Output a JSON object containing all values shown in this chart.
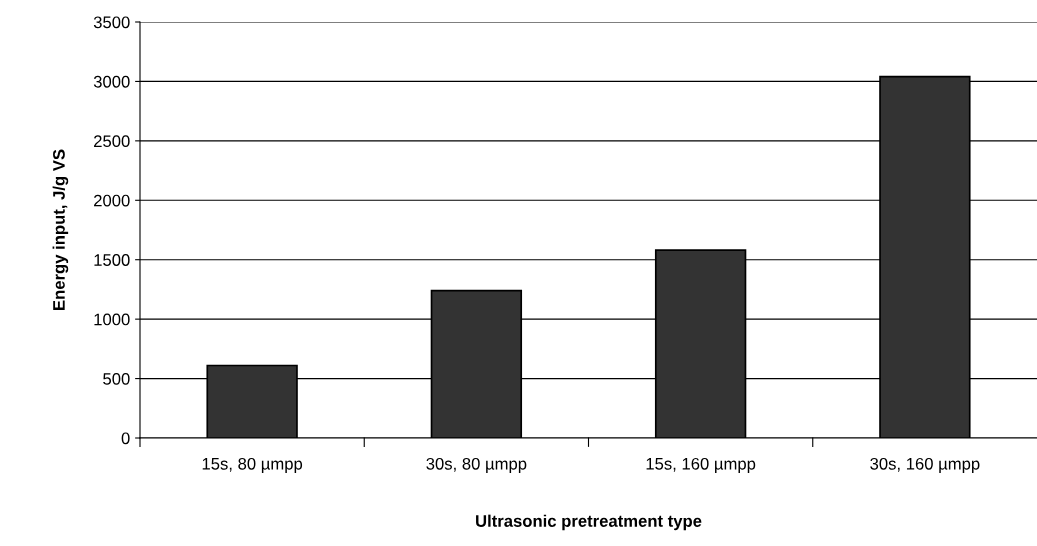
{
  "chart_data": {
    "type": "bar",
    "xlabel": "Ultrasonic pretreatment type",
    "ylabel": "Energy input, J/g VS",
    "categories": [
      "15s, 80 µmpp",
      "30s, 80 µmpp",
      "15s, 160 µmpp",
      "30s, 160 µmpp"
    ],
    "values": [
      610,
      1240,
      1580,
      3040
    ],
    "color": "#333333",
    "ylim": [
      0,
      3500
    ],
    "yticks": [
      0,
      500,
      1000,
      1500,
      2000,
      2500,
      3000,
      3500
    ],
    "grid": "y",
    "legend": false
  }
}
